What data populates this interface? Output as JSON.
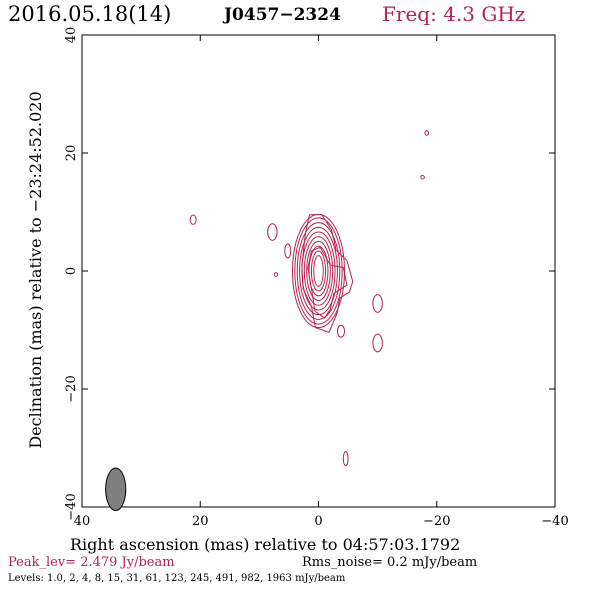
{
  "header": {
    "date": "2016.05.18(14)",
    "source": "J0457−2324",
    "frequency": "Freq: 4.3 GHz"
  },
  "footer": {
    "peak": "Peak_lev=  2.479 Jy/beam",
    "rms": "Rms_noise=  0.2 mJy/beam",
    "levels": "Levels: 1.0,   2,   4,   8,  15,  31,  61, 123, 245, 491, 982, 1963 mJy/beam"
  },
  "colors": {
    "contour": "#b5234f",
    "beam_fill": "#7f7f7f",
    "axes": "#000000"
  },
  "chart_data": {
    "type": "contour",
    "xlabel": "Right ascension (mas) relative to 04:57:03.1792",
    "ylabel": "Declination (mas) relative to −23:24:52.020",
    "xlim": [
      40,
      -40
    ],
    "ylim": [
      -40,
      40
    ],
    "x_ticks": [
      40,
      20,
      0,
      -20,
      -40
    ],
    "y_ticks": [
      -40,
      -20,
      0,
      20,
      40
    ],
    "x_tick_labels": [
      "40",
      "20",
      "0",
      "−20",
      "−40"
    ],
    "y_tick_labels": [
      "−40",
      "−20",
      "0",
      "20",
      "40"
    ],
    "contour_levels_mJy": [
      1.0,
      2,
      4,
      8,
      15,
      31,
      61,
      123,
      245,
      491,
      982,
      1963
    ],
    "peak_Jy_per_beam": 2.479,
    "rms_mJy_per_beam": 0.2,
    "core": {
      "x": 0.0,
      "y": 0.0,
      "rings": [
        {
          "dx": 0.8,
          "dy": 2.6
        },
        {
          "dx": 1.2,
          "dy": 3.4
        },
        {
          "dx": 1.6,
          "dy": 4.2
        },
        {
          "dx": 2.0,
          "dy": 5.0
        },
        {
          "dx": 2.4,
          "dy": 5.8
        },
        {
          "dx": 2.8,
          "dy": 6.6
        },
        {
          "dx": 3.2,
          "dy": 7.4
        },
        {
          "dx": 3.6,
          "dy": 8.2
        },
        {
          "dx": 4.0,
          "dy": 9.0
        },
        {
          "dx": 4.4,
          "dy": 9.6
        }
      ]
    },
    "jet_outline_mas": [
      [
        1.5,
        9.5
      ],
      [
        -0.5,
        9.6
      ],
      [
        -2.2,
        7.0
      ],
      [
        -3.0,
        3.5
      ],
      [
        -4.8,
        1.8
      ],
      [
        -5.8,
        -1.8
      ],
      [
        -5.2,
        -3.6
      ],
      [
        -3.6,
        -4.6
      ],
      [
        -3.2,
        -7.0
      ],
      [
        -1.8,
        -10.4
      ],
      [
        0.5,
        -9.6
      ],
      [
        1.2,
        -6.0
      ],
      [
        2.6,
        -3.0
      ],
      [
        2.8,
        1.0
      ],
      [
        2.2,
        6.5
      ],
      [
        1.5,
        9.5
      ]
    ],
    "jet_inner_mas": [
      [
        -0.3,
        4.0
      ],
      [
        -2.0,
        1.0
      ],
      [
        -4.2,
        0.6
      ],
      [
        -4.8,
        -2.4
      ],
      [
        -2.6,
        -3.8
      ],
      [
        -2.0,
        -6.5
      ],
      [
        -1.0,
        -8.0
      ],
      [
        0.6,
        -6.8
      ],
      [
        1.2,
        -3.0
      ],
      [
        1.8,
        0.5
      ],
      [
        1.2,
        3.4
      ],
      [
        -0.3,
        4.0
      ]
    ],
    "components": [
      {
        "x": 21.2,
        "y": 8.7,
        "rx": 0.5,
        "ry": 0.8
      },
      {
        "x": 7.8,
        "y": 6.6,
        "rx": 0.8,
        "ry": 1.4
      },
      {
        "x": 5.2,
        "y": 3.4,
        "rx": 0.5,
        "ry": 1.2
      },
      {
        "x": 7.2,
        "y": -0.6,
        "rx": 0.3,
        "ry": 0.3
      },
      {
        "x": -18.3,
        "y": 23.4,
        "rx": 0.3,
        "ry": 0.4
      },
      {
        "x": -17.6,
        "y": 15.9,
        "rx": 0.3,
        "ry": 0.3
      },
      {
        "x": -10.0,
        "y": -5.5,
        "rx": 0.8,
        "ry": 1.5
      },
      {
        "x": -3.8,
        "y": -10.2,
        "rx": 0.6,
        "ry": 1.0
      },
      {
        "x": -10.0,
        "y": -12.2,
        "rx": 0.8,
        "ry": 1.5
      },
      {
        "x": -4.6,
        "y": -31.8,
        "rx": 0.4,
        "ry": 1.2
      }
    ],
    "beam": {
      "x": 34.3,
      "y": -37.0,
      "major_mas": 3.6,
      "minor_mas": 1.7,
      "pa_deg": 0
    }
  }
}
